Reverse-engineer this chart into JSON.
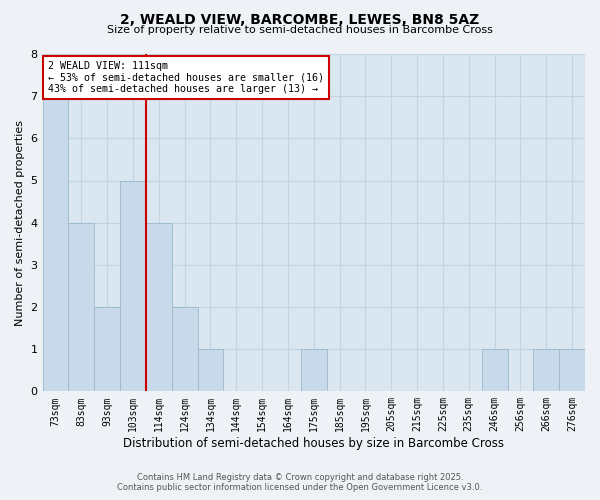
{
  "title": "2, WEALD VIEW, BARCOMBE, LEWES, BN8 5AZ",
  "subtitle": "Size of property relative to semi-detached houses in Barcombe Cross",
  "xlabel": "Distribution of semi-detached houses by size in Barcombe Cross",
  "ylabel": "Number of semi-detached properties",
  "categories": [
    "73sqm",
    "83sqm",
    "93sqm",
    "103sqm",
    "114sqm",
    "124sqm",
    "134sqm",
    "144sqm",
    "154sqm",
    "164sqm",
    "175sqm",
    "185sqm",
    "195sqm",
    "205sqm",
    "215sqm",
    "225sqm",
    "235sqm",
    "246sqm",
    "256sqm",
    "266sqm",
    "276sqm"
  ],
  "values": [
    7,
    4,
    2,
    5,
    4,
    2,
    1,
    0,
    0,
    0,
    1,
    0,
    0,
    0,
    0,
    0,
    0,
    1,
    0,
    1,
    1
  ],
  "bar_color": "#c8daea",
  "bar_edge_color": "#9ab8cc",
  "vline_color": "#cc0000",
  "annotation_label": "2 WEALD VIEW: 111sqm",
  "annotation_line1": "← 53% of semi-detached houses are smaller (16)",
  "annotation_line2": "43% of semi-detached houses are larger (13) →",
  "annotation_box_color": "#ffffff",
  "annotation_box_edge": "#cc0000",
  "ylim": [
    0,
    8
  ],
  "yticks": [
    0,
    1,
    2,
    3,
    4,
    5,
    6,
    7,
    8
  ],
  "background_color": "#eef2f6",
  "plot_bg_color": "#dae6f0",
  "grid_color": "#c0d4e4",
  "footer_line1": "Contains HM Land Registry data © Crown copyright and database right 2025.",
  "footer_line2": "Contains public sector information licensed under the Open Government Licence v3.0."
}
